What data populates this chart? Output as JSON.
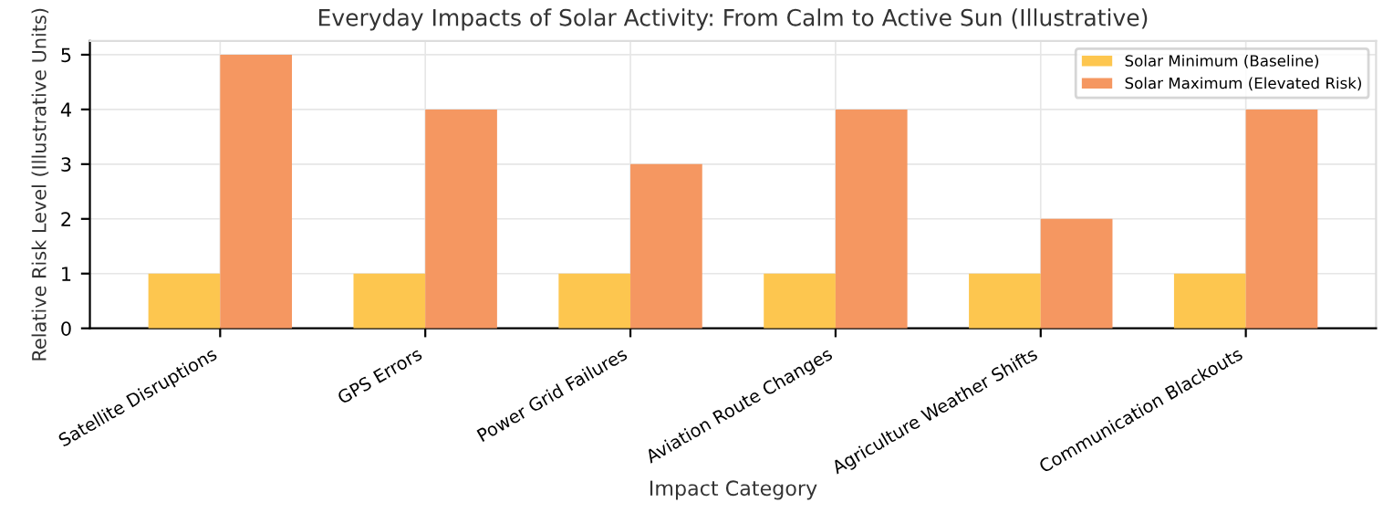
{
  "chart_data": {
    "type": "bar",
    "title": "Everyday Impacts of Solar Activity: From Calm to Active Sun (Illustrative)",
    "xlabel": "Impact Category",
    "ylabel": "Relative Risk Level (Illustrative Units)",
    "categories": [
      "Satellite Disruptions",
      "GPS Errors",
      "Power Grid Failures",
      "Aviation Route Changes",
      "Agriculture Weather Shifts",
      "Communication Blackouts"
    ],
    "series": [
      {
        "name": "Solar Minimum (Baseline)",
        "color": "#fdc64f",
        "values": [
          1,
          1,
          1,
          1,
          1,
          1
        ]
      },
      {
        "name": "Solar Maximum (Elevated Risk)",
        "color": "#f59761",
        "values": [
          5,
          4,
          3,
          4,
          2,
          4
        ]
      }
    ],
    "ylim": [
      0,
      5.25
    ],
    "yticks": [
      0,
      1,
      2,
      3,
      4,
      5
    ],
    "grid": true,
    "legend": "top right"
  }
}
